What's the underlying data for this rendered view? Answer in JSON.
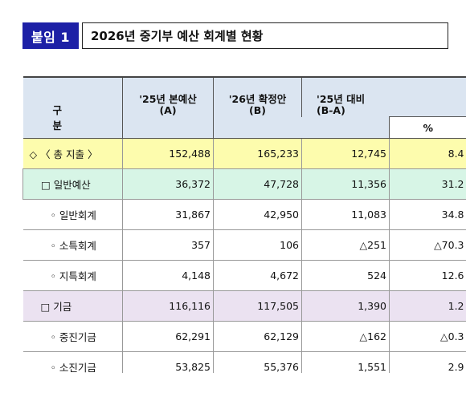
{
  "title": {
    "badge": "붙임 1",
    "text": "2026년 중기부 예산 회계별 현황"
  },
  "table": {
    "headers": {
      "kubun": "구 분",
      "col1_line1": "'25년 본예산",
      "col1_line2": "(A)",
      "col2_line1": "'26년 확정안",
      "col2_line2": "(B)",
      "col3_line1": "'25년 대비",
      "col3_line2": "(B-A)",
      "col4": "%"
    },
    "rows": [
      {
        "label": "◇ 〈 총 지출 〉",
        "a": "152,488",
        "b": "165,233",
        "diff": "12,745",
        "pct": "8.4"
      },
      {
        "label": "□ 일반예산",
        "a": "36,372",
        "b": "47,728",
        "diff": "11,356",
        "pct": "31.2"
      },
      {
        "label": "◦ 일반회계",
        "a": "31,867",
        "b": "42,950",
        "diff": "11,083",
        "pct": "34.8"
      },
      {
        "label": "◦ 소특회계",
        "a": "357",
        "b": "106",
        "diff": "△251",
        "pct": "△70.3"
      },
      {
        "label": "◦ 지특회계",
        "a": "4,148",
        "b": "4,672",
        "diff": "524",
        "pct": "12.6"
      },
      {
        "label": "□ 기금",
        "a": "116,116",
        "b": "117,505",
        "diff": "1,390",
        "pct": "1.2"
      },
      {
        "label": "◦ 중진기금",
        "a": "62,291",
        "b": "62,129",
        "diff": "△162",
        "pct": "△0.3"
      },
      {
        "label": "◦ 소진기금",
        "a": "53,825",
        "b": "55,376",
        "diff": "1,551",
        "pct": "2.9"
      }
    ]
  },
  "colors": {
    "badge": "#1d20a6",
    "header": "#dbe5f1",
    "total": "#fdfcad",
    "general": "#d7f5e6",
    "fund": "#ebe2f1"
  }
}
